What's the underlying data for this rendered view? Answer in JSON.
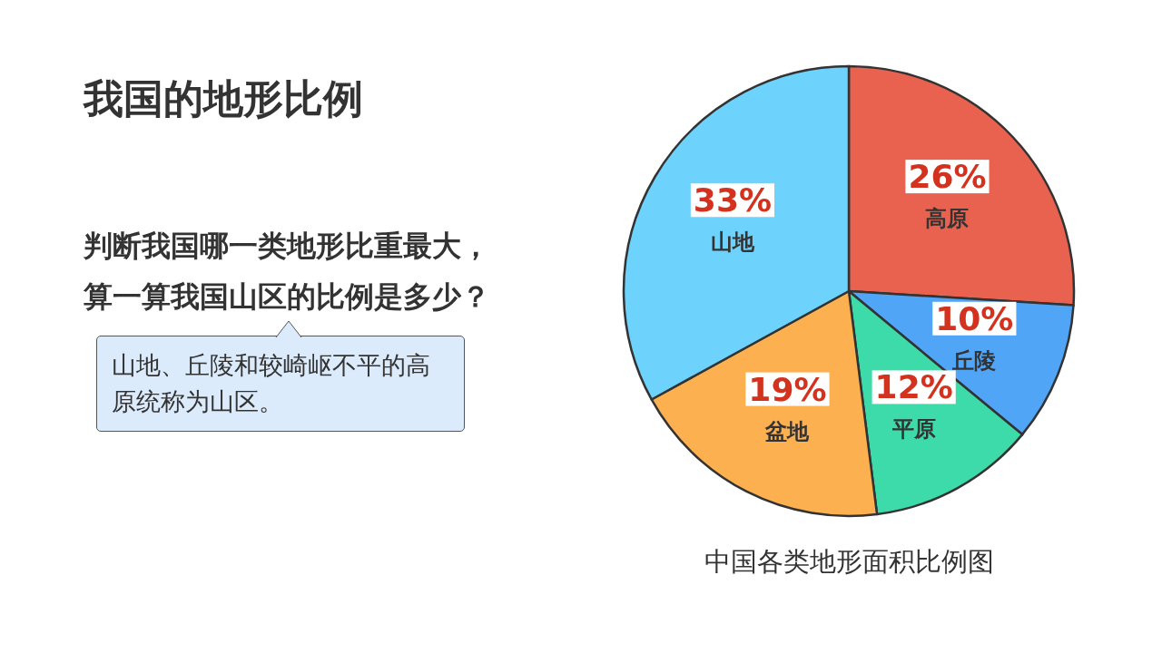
{
  "chart_data": {
    "type": "pie",
    "title": "我国的地形比例",
    "categories": [
      "高原",
      "丘陵",
      "平原",
      "盆地",
      "山地"
    ],
    "values": [
      26,
      10,
      12,
      19,
      33
    ],
    "value_labels": [
      "26%",
      "10%",
      "12%",
      "19%",
      "33%"
    ],
    "colors": [
      "#e8624f",
      "#50a5f7",
      "#3ddba9",
      "#fcb04f",
      "#6dd3fd"
    ],
    "annotations": [
      "判断我国哪一类地形比重最大，",
      "算一算我国山区的比例是多少？",
      "山地、丘陵和较崎岖不平的高原统称为山区。",
      "中国各类地形面积比例图"
    ],
    "legend": false
  }
}
